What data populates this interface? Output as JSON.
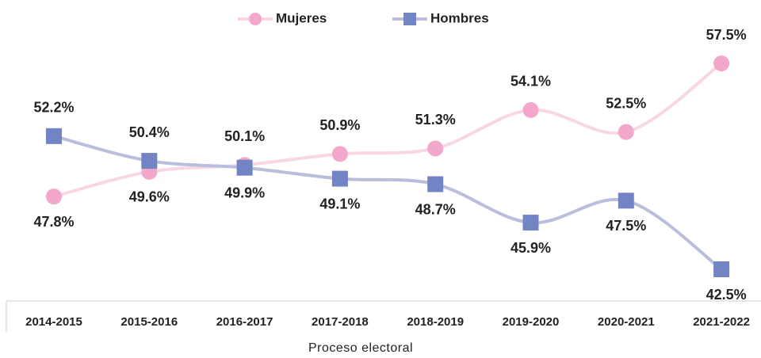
{
  "chart_data": {
    "type": "line",
    "x_label": "Proceso electoral",
    "categories": [
      "2014-2015",
      "2015-2016",
      "2016-2017",
      "2017-2018",
      "2018-2019",
      "2019-2020",
      "2020-2021",
      "2021-2022"
    ],
    "series": [
      {
        "name": "Mujeres",
        "color": "#f2a7cb",
        "line_color": "#f9d6e6",
        "marker": "circle",
        "values": [
          47.8,
          49.6,
          50.1,
          50.9,
          51.3,
          54.1,
          52.5,
          57.5
        ],
        "value_labels": [
          "47.8%",
          "49.6%",
          "50.1%",
          "50.9%",
          "51.3%",
          "54.1%",
          "52.5%",
          "57.5%"
        ]
      },
      {
        "name": "Hombres",
        "color": "#7384c4",
        "line_color": "#b8bedc",
        "marker": "square",
        "values": [
          52.2,
          50.4,
          49.9,
          49.1,
          48.7,
          45.9,
          47.5,
          42.5
        ],
        "value_labels": [
          "52.2%",
          "50.4%",
          "49.9%",
          "49.1%",
          "48.7%",
          "45.9%",
          "47.5%",
          "42.5%"
        ]
      }
    ],
    "ylim": [
      41,
      59
    ],
    "legend": "top"
  }
}
